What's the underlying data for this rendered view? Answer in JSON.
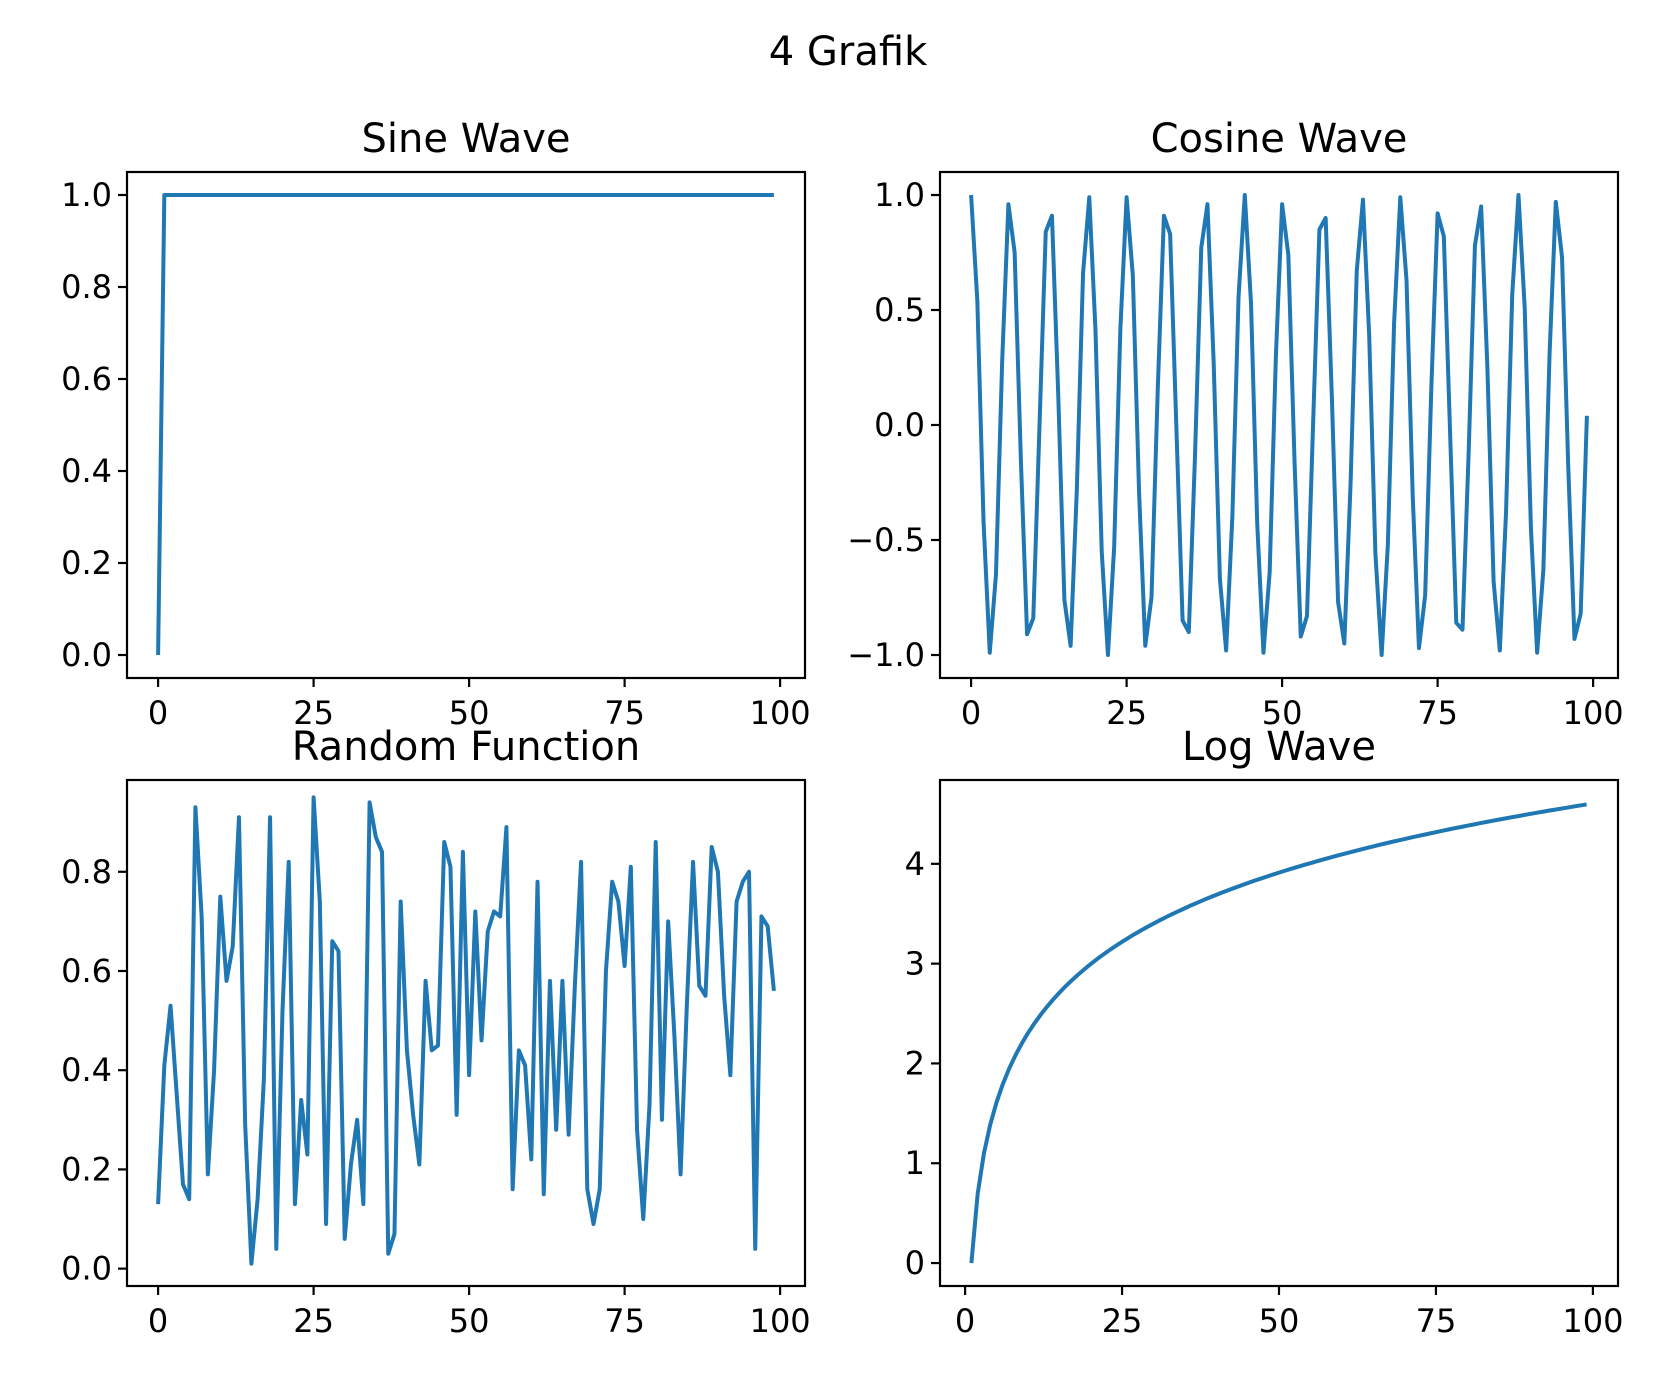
{
  "figure_title": "4 Grafik",
  "colors": {
    "line": "#1f77b4"
  },
  "chart_data": [
    {
      "type": "line",
      "title": "Sine Wave",
      "xlabel": "",
      "ylabel": "",
      "xlim": [
        -5,
        104
      ],
      "ylim": [
        -0.05,
        1.05
      ],
      "xticks": [
        0,
        25,
        50,
        75,
        100
      ],
      "xtick_labels": [
        "0",
        "25",
        "50",
        "75",
        "100"
      ],
      "yticks": [
        0,
        0.2,
        0.4,
        0.6,
        0.8,
        1.0
      ],
      "ytick_labels": [
        "0.0",
        "0.2",
        "0.4",
        "0.6",
        "0.8",
        "1.0"
      ],
      "grid": false,
      "series": [
        {
          "x_start": 0,
          "x_step": 1,
          "values": [
            0,
            1,
            1,
            1,
            1,
            1,
            1,
            1,
            1,
            1,
            1,
            1,
            1,
            1,
            1,
            1,
            1,
            1,
            1,
            1,
            1,
            1,
            1,
            1,
            1,
            1,
            1,
            1,
            1,
            1,
            1,
            1,
            1,
            1,
            1,
            1,
            1,
            1,
            1,
            1,
            1,
            1,
            1,
            1,
            1,
            1,
            1,
            1,
            1,
            1,
            1,
            1,
            1,
            1,
            1,
            1,
            1,
            1,
            1,
            1,
            1,
            1,
            1,
            1,
            1,
            1,
            1,
            1,
            1,
            1,
            1,
            1,
            1,
            1,
            1,
            1,
            1,
            1,
            1,
            1,
            1,
            1,
            1,
            1,
            1,
            1,
            1,
            1,
            1,
            1,
            1,
            1,
            1,
            1,
            1,
            1,
            1,
            1,
            1,
            1
          ]
        }
      ]
    },
    {
      "type": "line",
      "title": "Cosine Wave",
      "xlabel": "",
      "ylabel": "",
      "xlim": [
        -5,
        104
      ],
      "ylim": [
        -1.1,
        1.1
      ],
      "xticks": [
        0,
        25,
        50,
        75,
        100
      ],
      "xtick_labels": [
        "0",
        "25",
        "50",
        "75",
        "100"
      ],
      "yticks": [
        -1.0,
        -0.5,
        0.0,
        0.5,
        1.0
      ],
      "ytick_labels": [
        "−1.0",
        "−0.5",
        "0.0",
        "0.5",
        "1.0"
      ],
      "grid": false,
      "series": [
        {
          "x_start": 0,
          "x_step": 1,
          "values": [
            1.0,
            0.54,
            -0.42,
            -0.99,
            -0.65,
            0.28,
            0.96,
            0.75,
            -0.15,
            -0.91,
            -0.84,
            0.0,
            0.84,
            0.91,
            0.14,
            -0.76,
            -0.96,
            -0.28,
            0.66,
            0.99,
            0.41,
            -0.55,
            -1.0,
            -0.53,
            0.42,
            0.99,
            0.65,
            -0.29,
            -0.96,
            -0.75,
            0.15,
            0.91,
            0.83,
            -0.01,
            -0.85,
            -0.9,
            -0.13,
            0.77,
            0.96,
            0.27,
            -0.67,
            -0.98,
            -0.4,
            0.56,
            1.0,
            0.53,
            -0.43,
            -0.99,
            -0.64,
            0.3,
            0.96,
            0.74,
            -0.16,
            -0.92,
            -0.83,
            0.02,
            0.85,
            0.9,
            0.12,
            -0.77,
            -0.95,
            -0.26,
            0.67,
            0.98,
            0.39,
            -0.56,
            -1.0,
            -0.52,
            0.44,
            0.99,
            0.63,
            -0.31,
            -0.97,
            -0.74,
            0.17,
            0.92,
            0.82,
            -0.03,
            -0.86,
            -0.89,
            -0.11,
            0.78,
            0.95,
            0.25,
            -0.68,
            -0.98,
            -0.38,
            0.57,
            1.0,
            0.51,
            -0.45,
            -0.99,
            -0.63,
            0.31,
            0.97,
            0.73,
            -0.18,
            -0.93,
            -0.82,
            0.04
          ]
        }
      ]
    },
    {
      "type": "line",
      "title": "Random Function",
      "xlabel": "",
      "ylabel": "",
      "xlim": [
        -5,
        104
      ],
      "ylim": [
        -0.035,
        0.985
      ],
      "xticks": [
        0,
        25,
        50,
        75,
        100
      ],
      "xtick_labels": [
        "0",
        "25",
        "50",
        "75",
        "100"
      ],
      "yticks": [
        0,
        0.2,
        0.4,
        0.6,
        0.8
      ],
      "ytick_labels": [
        "0.0",
        "0.2",
        "0.4",
        "0.6",
        "0.8"
      ],
      "grid": false,
      "series": [
        {
          "x_start": 0,
          "x_step": 1,
          "values": [
            0.13,
            0.41,
            0.53,
            0.35,
            0.17,
            0.14,
            0.93,
            0.71,
            0.19,
            0.4,
            0.75,
            0.58,
            0.65,
            0.91,
            0.29,
            0.01,
            0.14,
            0.38,
            0.91,
            0.04,
            0.52,
            0.82,
            0.13,
            0.34,
            0.23,
            0.95,
            0.74,
            0.09,
            0.66,
            0.64,
            0.06,
            0.21,
            0.3,
            0.13,
            0.94,
            0.87,
            0.84,
            0.03,
            0.07,
            0.74,
            0.44,
            0.31,
            0.21,
            0.58,
            0.44,
            0.45,
            0.86,
            0.81,
            0.31,
            0.84,
            0.39,
            0.72,
            0.46,
            0.68,
            0.72,
            0.71,
            0.89,
            0.16,
            0.44,
            0.41,
            0.22,
            0.78,
            0.15,
            0.58,
            0.28,
            0.58,
            0.27,
            0.57,
            0.82,
            0.16,
            0.09,
            0.16,
            0.6,
            0.78,
            0.74,
            0.61,
            0.81,
            0.28,
            0.1,
            0.33,
            0.86,
            0.3,
            0.7,
            0.47,
            0.19,
            0.53,
            0.82,
            0.57,
            0.55,
            0.85,
            0.8,
            0.55,
            0.39,
            0.74,
            0.78,
            0.8,
            0.04,
            0.71,
            0.69,
            0.56
          ]
        }
      ]
    },
    {
      "type": "line",
      "title": "Log Wave",
      "xlabel": "",
      "ylabel": "",
      "xlim": [
        -4,
        104
      ],
      "ylim": [
        -0.23,
        4.84
      ],
      "xticks": [
        0,
        25,
        50,
        75,
        100
      ],
      "xtick_labels": [
        "0",
        "25",
        "50",
        "75",
        "100"
      ],
      "yticks": [
        0,
        1,
        2,
        3,
        4
      ],
      "ytick_labels": [
        "0",
        "1",
        "2",
        "3",
        "4"
      ],
      "grid": false,
      "series": [
        {
          "x_start": 1,
          "x_step": 1,
          "values": [
            0.0,
            0.693,
            1.099,
            1.386,
            1.609,
            1.792,
            1.946,
            2.079,
            2.197,
            2.303,
            2.398,
            2.485,
            2.565,
            2.639,
            2.708,
            2.773,
            2.833,
            2.89,
            2.944,
            2.996,
            3.045,
            3.091,
            3.135,
            3.178,
            3.219,
            3.258,
            3.296,
            3.332,
            3.367,
            3.401,
            3.434,
            3.466,
            3.497,
            3.526,
            3.555,
            3.584,
            3.611,
            3.638,
            3.664,
            3.689,
            3.714,
            3.738,
            3.761,
            3.784,
            3.807,
            3.829,
            3.85,
            3.871,
            3.892,
            3.912,
            3.932,
            3.951,
            3.97,
            3.989,
            4.007,
            4.025,
            4.043,
            4.06,
            4.078,
            4.094,
            4.111,
            4.127,
            4.143,
            4.159,
            4.174,
            4.19,
            4.205,
            4.22,
            4.234,
            4.248,
            4.263,
            4.277,
            4.29,
            4.304,
            4.317,
            4.331,
            4.344,
            4.357,
            4.369,
            4.382,
            4.394,
            4.407,
            4.419,
            4.431,
            4.443,
            4.454,
            4.466,
            4.477,
            4.489,
            4.5,
            4.511,
            4.522,
            4.533,
            4.543,
            4.554,
            4.564,
            4.575,
            4.585,
            4.595
          ]
        }
      ]
    }
  ]
}
